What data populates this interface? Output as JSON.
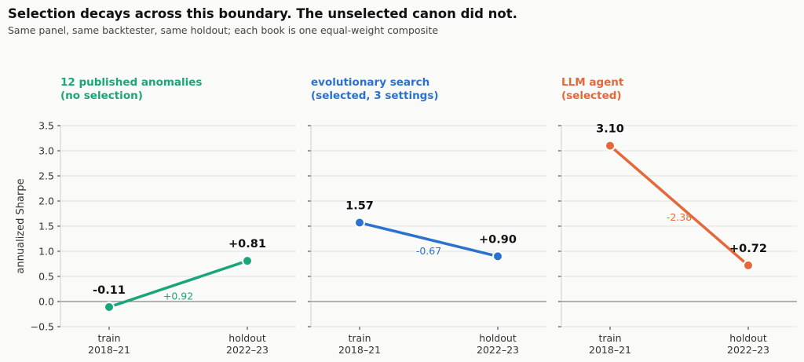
{
  "title": "Selection decays across this boundary. The unselected canon did not.",
  "subtitle": "Same panel, same backtester, same holdout; each book is one equal-weight composite",
  "chart_data": [
    {
      "type": "line",
      "title_lines": [
        "12 published anomalies",
        "(no selection)"
      ],
      "color": "#1aa67a",
      "ylabel": "annualized Sharpe",
      "categories": [
        [
          "train",
          "2018–21"
        ],
        [
          "holdout",
          "2022–23"
        ]
      ],
      "values": [
        -0.11,
        0.81
      ],
      "point_labels": [
        "-0.11",
        "+0.81"
      ],
      "delta_label": "+0.92",
      "ylim": [
        -0.5,
        3.5
      ],
      "yticks": [
        "−0.5",
        "0.0",
        "0.5",
        "1.0",
        "1.5",
        "2.0",
        "2.5",
        "3.0",
        "3.5"
      ],
      "grid": true
    },
    {
      "type": "line",
      "title_lines": [
        "evolutionary search",
        "(selected, 3 settings)"
      ],
      "color": "#2a72d0",
      "categories": [
        [
          "train",
          "2018–21"
        ],
        [
          "holdout",
          "2022–23"
        ]
      ],
      "values": [
        1.57,
        0.9
      ],
      "point_labels": [
        "1.57",
        "+0.90"
      ],
      "delta_label": "-0.67",
      "ylim": [
        -0.5,
        3.5
      ],
      "grid": true
    },
    {
      "type": "line",
      "title_lines": [
        "LLM agent",
        "(selected)"
      ],
      "color": "#e4683a",
      "categories": [
        [
          "train",
          "2018–21"
        ],
        [
          "holdout",
          "2022–23"
        ]
      ],
      "values": [
        3.1,
        0.72
      ],
      "point_labels": [
        "3.10",
        "+0.72"
      ],
      "delta_label": "-2.38",
      "ylim": [
        -0.5,
        3.5
      ],
      "grid": true
    }
  ]
}
